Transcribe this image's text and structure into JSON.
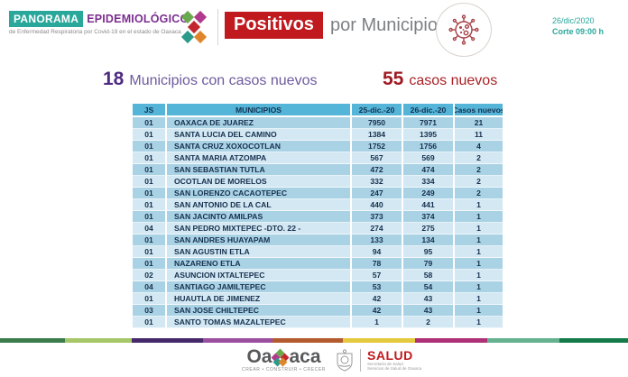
{
  "header": {
    "logo": {
      "panorama": "PANORAMA",
      "epidemiologico": "EPIDEMIOLÓGICO",
      "subtitle": "de Enfermedad Respiratoria por Covid-19 en el estado de Oaxaca"
    },
    "title_badge": "Positivos",
    "title_rest": "por Municipio",
    "date": "26/dic/2020",
    "cutoff": "Corte 09:00 h"
  },
  "summary": {
    "municipios_count": "18",
    "municipios_label": "Municipios con casos nuevos",
    "casos_count": "55",
    "casos_label": "casos nuevos"
  },
  "table": {
    "columns": [
      "JS",
      "MUNICIPIOS",
      "25-dic.-20",
      "26-dic.-20",
      "Casos nuevos"
    ],
    "rows": [
      [
        "01",
        "OAXACA DE JUAREZ",
        "7950",
        "7971",
        "21"
      ],
      [
        "01",
        "SANTA LUCIA DEL CAMINO",
        "1384",
        "1395",
        "11"
      ],
      [
        "01",
        "SANTA CRUZ XOXOCOTLAN",
        "1752",
        "1756",
        "4"
      ],
      [
        "01",
        "SANTA MARIA ATZOMPA",
        "567",
        "569",
        "2"
      ],
      [
        "01",
        "SAN SEBASTIAN TUTLA",
        "472",
        "474",
        "2"
      ],
      [
        "01",
        "OCOTLAN DE MORELOS",
        "332",
        "334",
        "2"
      ],
      [
        "01",
        "SAN LORENZO CACAOTEPEC",
        "247",
        "249",
        "2"
      ],
      [
        "01",
        "SAN ANTONIO DE LA CAL",
        "440",
        "441",
        "1"
      ],
      [
        "01",
        "SAN JACINTO AMILPAS",
        "373",
        "374",
        "1"
      ],
      [
        "04",
        "SAN PEDRO MIXTEPEC -DTO. 22 -",
        "274",
        "275",
        "1"
      ],
      [
        "01",
        "SAN ANDRES HUAYAPAM",
        "133",
        "134",
        "1"
      ],
      [
        "01",
        "SAN AGUSTIN ETLA",
        "94",
        "95",
        "1"
      ],
      [
        "01",
        "NAZARENO ETLA",
        "78",
        "79",
        "1"
      ],
      [
        "02",
        "ASUNCION IXTALTEPEC",
        "57",
        "58",
        "1"
      ],
      [
        "04",
        "SANTIAGO JAMILTEPEC",
        "53",
        "54",
        "1"
      ],
      [
        "01",
        "HUAUTLA DE JIMENEZ",
        "42",
        "43",
        "1"
      ],
      [
        "03",
        "SAN JOSE CHILTEPEC",
        "42",
        "43",
        "1"
      ],
      [
        "01",
        "SANTO TOMAS MAZALTEPEC",
        "1",
        "2",
        "1"
      ]
    ]
  },
  "footer": {
    "oaxaca_part1": "Oa",
    "oaxaca_part2": "aca",
    "tagline": "CREAR • CONSTRUIR • CRECER",
    "salud": "SALUD",
    "salud_sub1": "Secretaría de Salud",
    "salud_sub2": "Servicios de Salud de Oaxaca"
  },
  "colors": {
    "teal": "#2aa79b",
    "purple": "#7b2e8e",
    "red_badge": "#c01a1f",
    "summary_purple": "#4e2a80",
    "summary_red": "#9e1b23",
    "table_header_bg": "#54b5d9",
    "row_dark": "#aad2e5",
    "row_light": "#d3e8f2",
    "stripe": [
      "#3c7c4c",
      "#a6c768",
      "#46296b",
      "#9b4f9f",
      "#b35a2e",
      "#e5c93e",
      "#ae3077",
      "#64b28f",
      "#157a49"
    ]
  }
}
